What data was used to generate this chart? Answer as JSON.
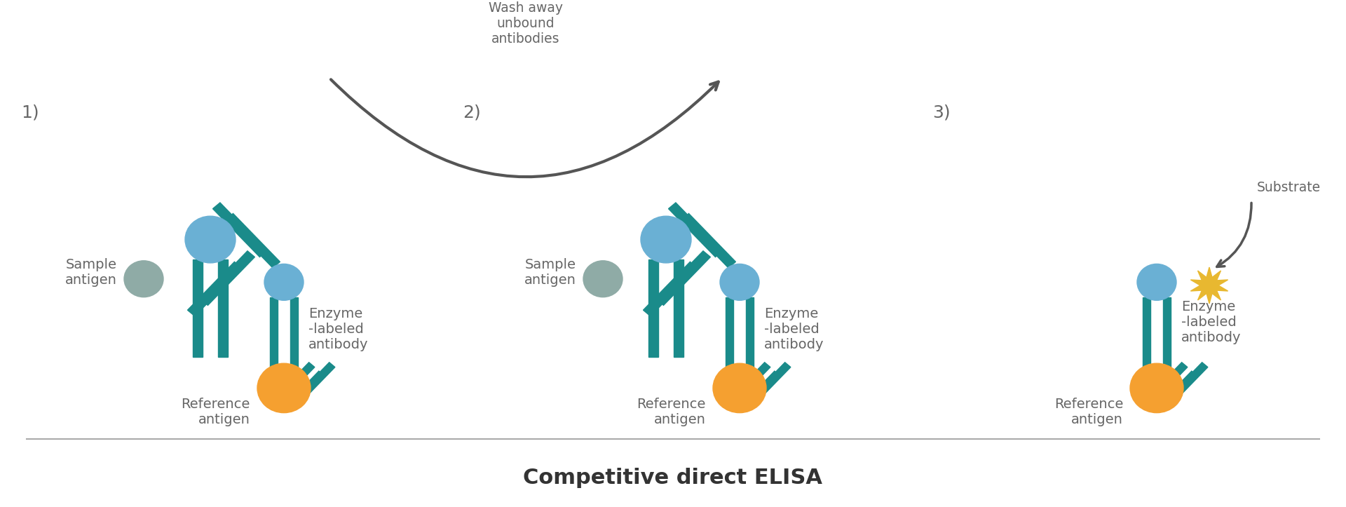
{
  "title": "Competitive direct ELISA",
  "title_fontsize": 22,
  "title_fontweight": "bold",
  "bg_color": "#ffffff",
  "text_color": "#666666",
  "teal_color": "#1a8b8a",
  "blue_color": "#6ab0d4",
  "orange_color": "#f5a030",
  "green_color": "#8faba6",
  "arrow_color": "#555555",
  "star_color": "#e8b830",
  "step_labels": [
    "1)",
    "2)",
    "3)"
  ],
  "step_label_fontsize": 18,
  "annotation_fontsize": 14,
  "wash_text": "Wash away\nunbound\nantibodies",
  "substrate_text": "Substrate",
  "label_sample_antigen": "Sample\nantigen",
  "label_reference_antigen": "Reference\nantigen",
  "label_enzyme_labeled": "Enzyme\n-labeled\nantibody",
  "line_color": "#aaaaaa"
}
